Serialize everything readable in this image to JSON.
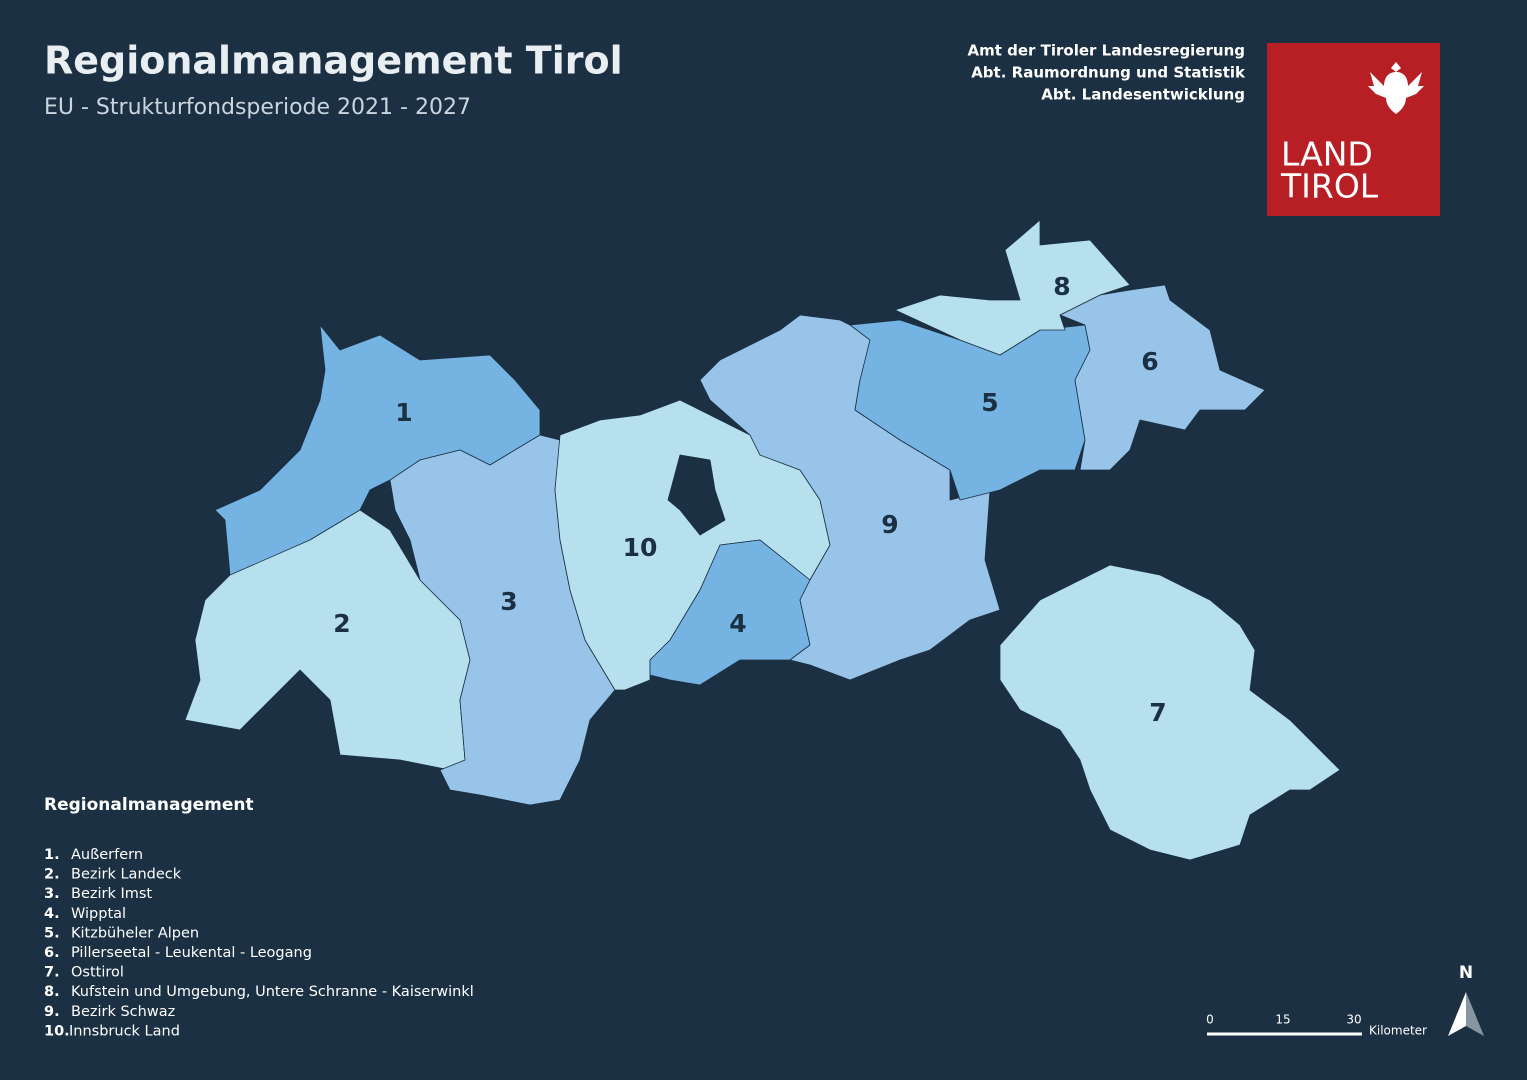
{
  "header": {
    "title": "Regionalmanagement Tirol",
    "subtitle": "EU - Strukturfondsperiode 2021 - 2027"
  },
  "agency": {
    "lines": [
      "Amt der Tiroler Landesregierung",
      "Abt. Raumordnung und Statistik",
      "Abt. Landesentwicklung"
    ]
  },
  "logo": {
    "lines": [
      "LAND",
      "TIROL"
    ]
  },
  "map": {
    "regions": [
      {
        "label": "1"
      },
      {
        "label": "2"
      },
      {
        "label": "3"
      },
      {
        "label": "4"
      },
      {
        "label": "5"
      },
      {
        "label": "6"
      },
      {
        "label": "7"
      },
      {
        "label": "8"
      },
      {
        "label": "9"
      },
      {
        "label": "10"
      }
    ]
  },
  "legend": {
    "title": "Regionalmanagement",
    "items": [
      {
        "number": "1.",
        "name": "Außerfern"
      },
      {
        "number": "2.",
        "name": "Bezirk Landeck"
      },
      {
        "number": "3.",
        "name": "Bezirk Imst"
      },
      {
        "number": "4.",
        "name": "Wipptal"
      },
      {
        "number": "5.",
        "name": "Kitzbüheler Alpen"
      },
      {
        "number": "6.",
        "name": "Pillerseetal - Leukental - Leogang"
      },
      {
        "number": "7.",
        "name": "Osttirol"
      },
      {
        "number": "8.",
        "name": "Kufstein und Umgebung, Untere Schranne - Kaiserwinkl"
      },
      {
        "number": "9.",
        "name": "Bezirk Schwaz"
      },
      {
        "number": "10.",
        "name": "Innsbruck Land"
      }
    ]
  },
  "scale_bar": {
    "ticks": [
      "0",
      "15",
      "30"
    ],
    "unit": "Kilometer"
  },
  "north_arrow": "N"
}
